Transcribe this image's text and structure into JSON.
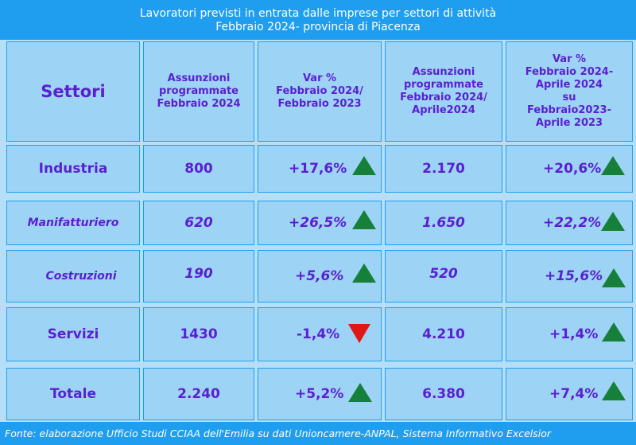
{
  "title": {
    "line1": "Lavoratori previsti in entrata dalle imprese per settori di attività",
    "line2": "Febbraio  2024- provincia di Piacenza"
  },
  "headers": {
    "settori": "Settori",
    "assunzioni_feb": [
      "Assunzioni",
      "programmate",
      "Febbraio  2024"
    ],
    "var_feb": [
      "Var %",
      "Febbraio  2024/",
      "Febbraio 2023"
    ],
    "assunzioni_feb_apr": [
      "Assunzioni",
      "programmate",
      "Febbraio 2024/",
      "Aprile2024"
    ],
    "var_feb_apr": [
      "Var %",
      "Febbraio  2024-",
      "Aprile 2024",
      "su",
      "Febbraio2023-",
      "Aprile 2023"
    ]
  },
  "rows": [
    {
      "settore": "Industria",
      "assunzioni_feb": "800",
      "var_feb": "+17,6%",
      "var_feb_trend": "up",
      "assunzioni_feb_apr": "2.170",
      "var_feb_apr": "+20,6%",
      "var_feb_apr_trend": "up"
    },
    {
      "settore": "Manifatturiero",
      "assunzioni_feb": "620",
      "var_feb": "+26,5%",
      "var_feb_trend": "up",
      "assunzioni_feb_apr": "1.650",
      "var_feb_apr": "+22,2%",
      "var_feb_apr_trend": "up"
    },
    {
      "settore": "Costruzioni",
      "assunzioni_feb": "190",
      "var_feb": "+5,6%",
      "var_feb_trend": "up",
      "assunzioni_feb_apr": "520",
      "var_feb_apr": "+15,6%",
      "var_feb_apr_trend": "up"
    },
    {
      "settore": "Servizi",
      "assunzioni_feb": "1430",
      "var_feb": "-1,4%",
      "var_feb_trend": "down",
      "assunzioni_feb_apr": "4.210",
      "var_feb_apr": "+1,4%",
      "var_feb_apr_trend": "up"
    },
    {
      "settore": "Totale",
      "assunzioni_feb": "2.240",
      "var_feb": "+5,2%",
      "var_feb_trend": "up",
      "assunzioni_feb_apr": "6.380",
      "var_feb_apr": "+7,4%",
      "var_feb_apr_trend": "up"
    }
  ],
  "footer": "Fonte: elaborazione Ufficio Studi CCIAA dell'Emilia su dati Unioncamere-ANPAL, Sistema Informativo Excelsior",
  "colors": {
    "trend_up": "#16803b",
    "trend_down": "#e01717",
    "text": "#5a1fd1",
    "accent": "#1f9ef0"
  }
}
